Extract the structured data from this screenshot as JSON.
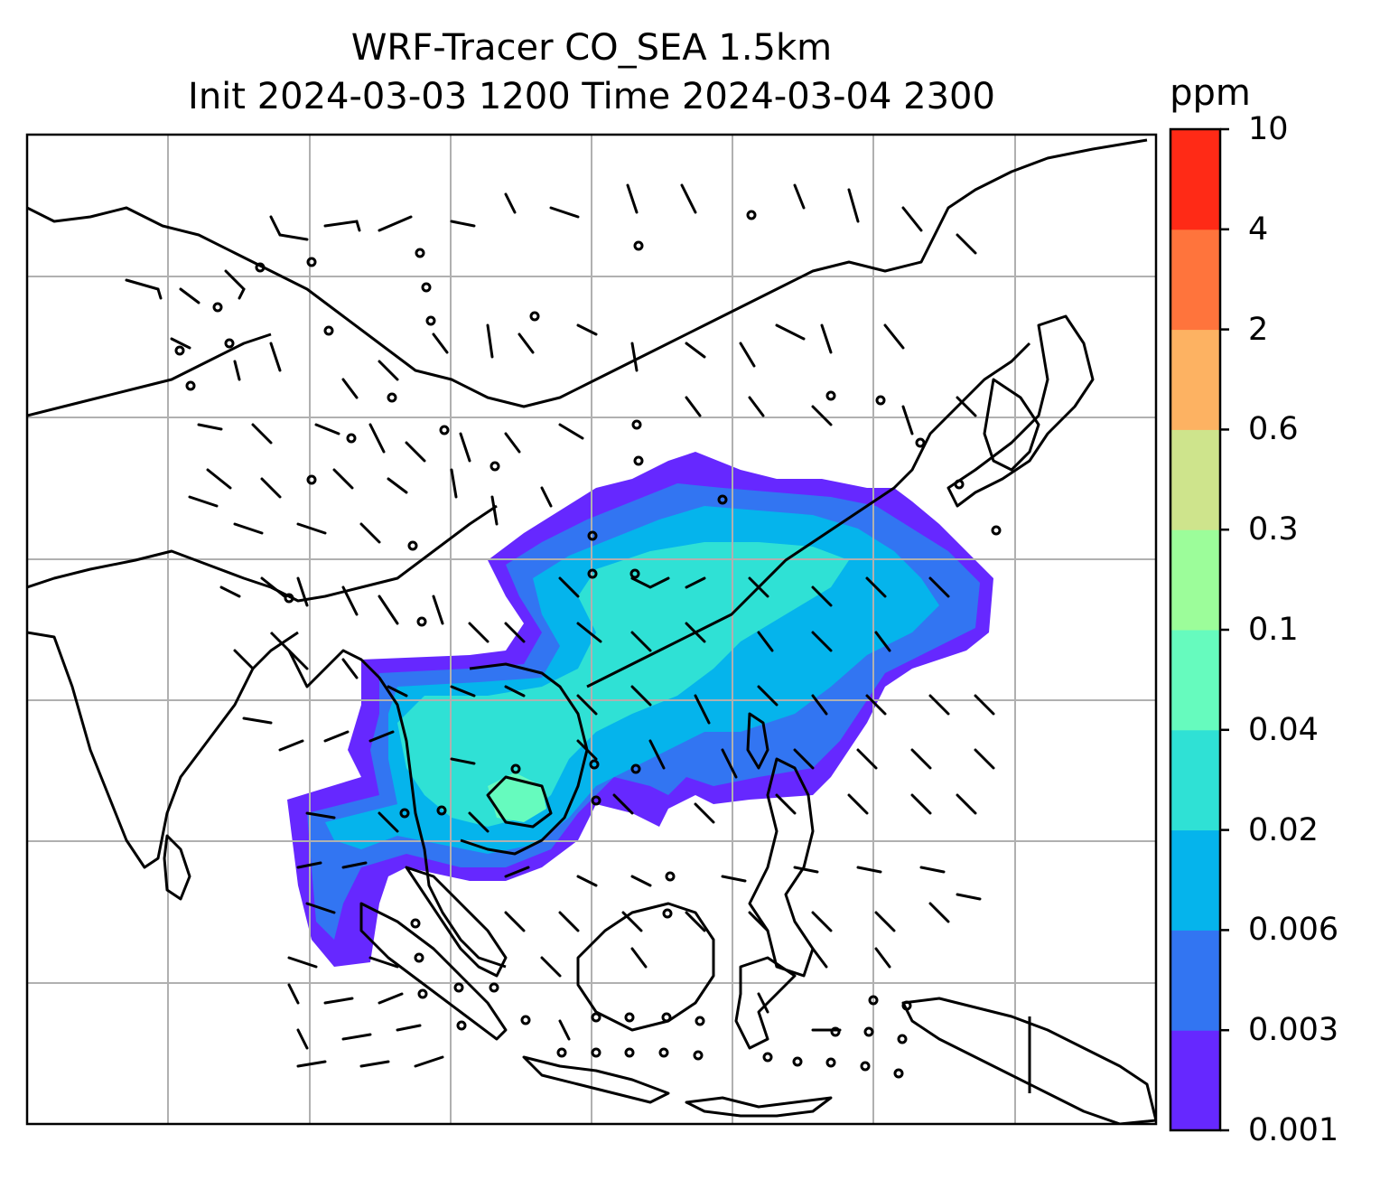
{
  "title": {
    "line1": "WRF-Tracer CO_SEA 1.5km",
    "line2": "Init 2024-03-03 1200 Time 2024-03-04 2300"
  },
  "colorbar": {
    "unit": "ppm",
    "levels": [
      "0.001",
      "0.003",
      "0.006",
      "0.02",
      "0.04",
      "0.1",
      "0.3",
      "0.6",
      "2",
      "4",
      "10"
    ],
    "colors": [
      "#6628ff",
      "#3275f2",
      "#05b4ec",
      "#2fe1d5",
      "#66fbbe",
      "#9cfd9a",
      "#cee48c",
      "#fdb262",
      "#ff743c",
      "#ff2a16"
    ]
  },
  "map": {
    "region": "Southeast Asia",
    "gridlines": true,
    "coastlines_color": "#000000",
    "gridline_color": "#b0b0b0",
    "wind_barbs": true,
    "plume": {
      "color_ocean_outer": "#6628ff",
      "color_band_2": "#3275f2",
      "color_band_3": "#05b4ec",
      "color_core": "#2fe1d5",
      "color_peak": "#66fbbe"
    }
  }
}
